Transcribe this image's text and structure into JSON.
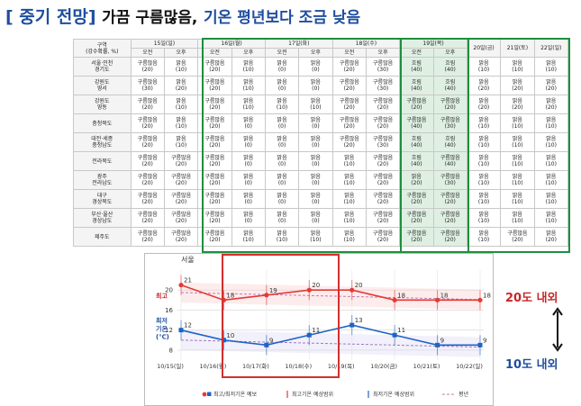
{
  "title": {
    "bracket": "[ 중기 전망]",
    "part1": "가끔 구름많음,",
    "part2": "기온 평년보다 조금 낮음"
  },
  "table": {
    "corner_label": "구역",
    "corner_sub": "(강수확률, %)",
    "days": [
      {
        "label": "15일(일)",
        "ampm": true
      },
      {
        "label": "16일(월)",
        "ampm": true
      },
      {
        "label": "17일(화)",
        "ampm": true
      },
      {
        "label": "18일(수)",
        "ampm": true
      },
      {
        "label": "19일(목)",
        "ampm": true
      },
      {
        "label": "20일(금)",
        "ampm": false
      },
      {
        "label": "21일(토)",
        "ampm": false
      },
      {
        "label": "22일(일)",
        "ampm": false
      }
    ],
    "am_label": "오전",
    "pm_label": "오후",
    "rows": [
      {
        "region": [
          "서울·인천",
          "경기도"
        ],
        "cells": [
          [
            "구름많음",
            "(20)"
          ],
          [
            "맑음",
            "(10)"
          ],
          [
            "구름많음",
            "(20)"
          ],
          [
            "맑음",
            "(10)"
          ],
          [
            "맑음",
            "(0)"
          ],
          [
            "맑음",
            "(0)"
          ],
          [
            "구름많음",
            "(20)"
          ],
          [
            "구름많음",
            "(30)"
          ],
          [
            "흐림",
            "(40)"
          ],
          [
            "흐림",
            "(40)"
          ],
          [
            "맑음",
            "(10)"
          ],
          [
            "맑음",
            "(10)"
          ],
          [
            "맑음",
            "(10)"
          ]
        ]
      },
      {
        "region": [
          "강원도",
          "영서"
        ],
        "cells": [
          [
            "구름많음",
            "(30)"
          ],
          [
            "맑음",
            "(20)"
          ],
          [
            "구름많음",
            "(20)"
          ],
          [
            "맑음",
            "(10)"
          ],
          [
            "맑음",
            "(0)"
          ],
          [
            "맑음",
            "(0)"
          ],
          [
            "구름많음",
            "(20)"
          ],
          [
            "구름많음",
            "(30)"
          ],
          [
            "흐림",
            "(40)"
          ],
          [
            "흐림",
            "(40)"
          ],
          [
            "맑음",
            "(20)"
          ],
          [
            "맑음",
            "(20)"
          ],
          [
            "맑음",
            "(20)"
          ]
        ]
      },
      {
        "region": [
          "강원도",
          "영동"
        ],
        "cells": [
          [
            "구름많음",
            "(20)"
          ],
          [
            "맑음",
            "(10)"
          ],
          [
            "구름많음",
            "(20)"
          ],
          [
            "맑음",
            "(10)"
          ],
          [
            "맑음",
            "(10)"
          ],
          [
            "맑음",
            "(10)"
          ],
          [
            "구름많음",
            "(20)"
          ],
          [
            "구름많음",
            "(20)"
          ],
          [
            "구름많음",
            "(20)"
          ],
          [
            "구름많음",
            "(20)"
          ],
          [
            "맑음",
            "(20)"
          ],
          [
            "맑음",
            "(20)"
          ],
          [
            "맑음",
            "(20)"
          ]
        ]
      },
      {
        "region": [
          "충청북도"
        ],
        "cells": [
          [
            "구름많음",
            "(20)"
          ],
          [
            "맑음",
            "(10)"
          ],
          [
            "구름많음",
            "(20)"
          ],
          [
            "맑음",
            "(0)"
          ],
          [
            "맑음",
            "(0)"
          ],
          [
            "맑음",
            "(0)"
          ],
          [
            "구름많음",
            "(20)"
          ],
          [
            "구름많음",
            "(20)"
          ],
          [
            "구름많음",
            "(40)"
          ],
          [
            "구름많음",
            "(30)"
          ],
          [
            "맑음",
            "(10)"
          ],
          [
            "맑음",
            "(10)"
          ],
          [
            "맑음",
            "(10)"
          ]
        ]
      },
      {
        "region": [
          "대전·세종",
          "충청남도"
        ],
        "cells": [
          [
            "구름많음",
            "(20)"
          ],
          [
            "맑음",
            "(10)"
          ],
          [
            "구름많음",
            "(20)"
          ],
          [
            "맑음",
            "(0)"
          ],
          [
            "맑음",
            "(0)"
          ],
          [
            "맑음",
            "(0)"
          ],
          [
            "구름많음",
            "(20)"
          ],
          [
            "구름많음",
            "(30)"
          ],
          [
            "흐림",
            "(40)"
          ],
          [
            "흐림",
            "(40)"
          ],
          [
            "맑음",
            "(10)"
          ],
          [
            "맑음",
            "(10)"
          ],
          [
            "맑음",
            "(10)"
          ]
        ]
      },
      {
        "region": [
          "전라북도"
        ],
        "cells": [
          [
            "구름많음",
            "(20)"
          ],
          [
            "구름많음",
            "(20)"
          ],
          [
            "구름많음",
            "(20)"
          ],
          [
            "맑음",
            "(0)"
          ],
          [
            "맑음",
            "(0)"
          ],
          [
            "맑음",
            "(0)"
          ],
          [
            "맑음",
            "(10)"
          ],
          [
            "구름많음",
            "(20)"
          ],
          [
            "흐림",
            "(40)"
          ],
          [
            "구름많음",
            "(40)"
          ],
          [
            "맑음",
            "(10)"
          ],
          [
            "맑음",
            "(10)"
          ],
          [
            "맑음",
            "(10)"
          ]
        ]
      },
      {
        "region": [
          "광주",
          "전라남도"
        ],
        "cells": [
          [
            "구름많음",
            "(20)"
          ],
          [
            "구름많음",
            "(20)"
          ],
          [
            "구름많음",
            "(20)"
          ],
          [
            "맑음",
            "(0)"
          ],
          [
            "맑음",
            "(0)"
          ],
          [
            "맑음",
            "(0)"
          ],
          [
            "맑음",
            "(10)"
          ],
          [
            "구름많음",
            "(20)"
          ],
          [
            "맑음",
            "(20)"
          ],
          [
            "구름많음",
            "(30)"
          ],
          [
            "맑음",
            "(10)"
          ],
          [
            "맑음",
            "(10)"
          ],
          [
            "맑음",
            "(10)"
          ]
        ]
      },
      {
        "region": [
          "대구",
          "경상북도"
        ],
        "cells": [
          [
            "구름많음",
            "(20)"
          ],
          [
            "구름많음",
            "(20)"
          ],
          [
            "구름많음",
            "(20)"
          ],
          [
            "맑음",
            "(0)"
          ],
          [
            "맑음",
            "(0)"
          ],
          [
            "맑음",
            "(0)"
          ],
          [
            "맑음",
            "(10)"
          ],
          [
            "구름많음",
            "(20)"
          ],
          [
            "구름많음",
            "(20)"
          ],
          [
            "구름많음",
            "(20)"
          ],
          [
            "맑음",
            "(10)"
          ],
          [
            "맑음",
            "(10)"
          ],
          [
            "맑음",
            "(10)"
          ]
        ]
      },
      {
        "region": [
          "부산·울산",
          "경상남도"
        ],
        "cells": [
          [
            "구름많음",
            "(20)"
          ],
          [
            "구름많음",
            "(20)"
          ],
          [
            "구름많음",
            "(20)"
          ],
          [
            "맑음",
            "(0)"
          ],
          [
            "맑음",
            "(0)"
          ],
          [
            "맑음",
            "(0)"
          ],
          [
            "맑음",
            "(10)"
          ],
          [
            "구름많음",
            "(20)"
          ],
          [
            "구름많음",
            "(20)"
          ],
          [
            "구름많음",
            "(20)"
          ],
          [
            "맑음",
            "(10)"
          ],
          [
            "맑음",
            "(10)"
          ],
          [
            "맑음",
            "(10)"
          ]
        ]
      },
      {
        "region": [
          "제주도"
        ],
        "cells": [
          [
            "구름많음",
            "(20)"
          ],
          [
            "구름많음",
            "(20)"
          ],
          [
            "구름많음",
            "(20)"
          ],
          [
            "맑음",
            "(10)"
          ],
          [
            "맑음",
            "(10)"
          ],
          [
            "맑음",
            "(10)"
          ],
          [
            "맑음",
            "(10)"
          ],
          [
            "구름많음",
            "(20)"
          ],
          [
            "구름많음",
            "(20)"
          ],
          [
            "구름많음",
            "(20)"
          ],
          [
            "맑음",
            "(10)"
          ],
          [
            "구름많음",
            "(20)"
          ],
          [
            "맑음",
            "(20)"
          ]
        ]
      }
    ]
  },
  "chart_data": {
    "type": "line",
    "title": "서울",
    "categories": [
      "10/15(일)",
      "10/16(월)",
      "10/17(화)",
      "10/18(수)",
      "10/19(목)",
      "10/20(금)",
      "10/21(토)",
      "10/22(일)"
    ],
    "ylabel_high": "최고",
    "ylabel_low": [
      "최저",
      "기온",
      "(℃)"
    ],
    "yticks": [
      8,
      12,
      16,
      20
    ],
    "ylim": [
      6,
      24
    ],
    "series": [
      {
        "name": "최고기온",
        "values": [
          21,
          18,
          19,
          20,
          20,
          18,
          18,
          18
        ],
        "color": "#e53935"
      },
      {
        "name": "최저기온",
        "values": [
          12,
          10,
          9,
          11,
          13,
          11,
          9,
          9
        ],
        "color": "#1e63c6"
      }
    ],
    "normal_high": [
      19.5,
      19.3,
      19.1,
      18.9,
      18.7,
      18.5,
      18.3,
      18.1
    ],
    "normal_low": [
      10.0,
      9.8,
      9.6,
      9.4,
      9.2,
      9.0,
      8.8,
      8.6
    ],
    "legend": [
      "최고/최저기온 예보",
      "최고기온 예상범위",
      "최저기온 예상범위",
      "평년"
    ],
    "legend_placement": "bottom"
  },
  "annotations": {
    "high_range": "20도 내외",
    "low_range": "10도 내외"
  },
  "colors": {
    "highlight_green": "#1e8e3e",
    "highlight_red": "#d32f2f",
    "title_blue": "#1f4e9e",
    "thu_fill": "#dff0e3"
  }
}
